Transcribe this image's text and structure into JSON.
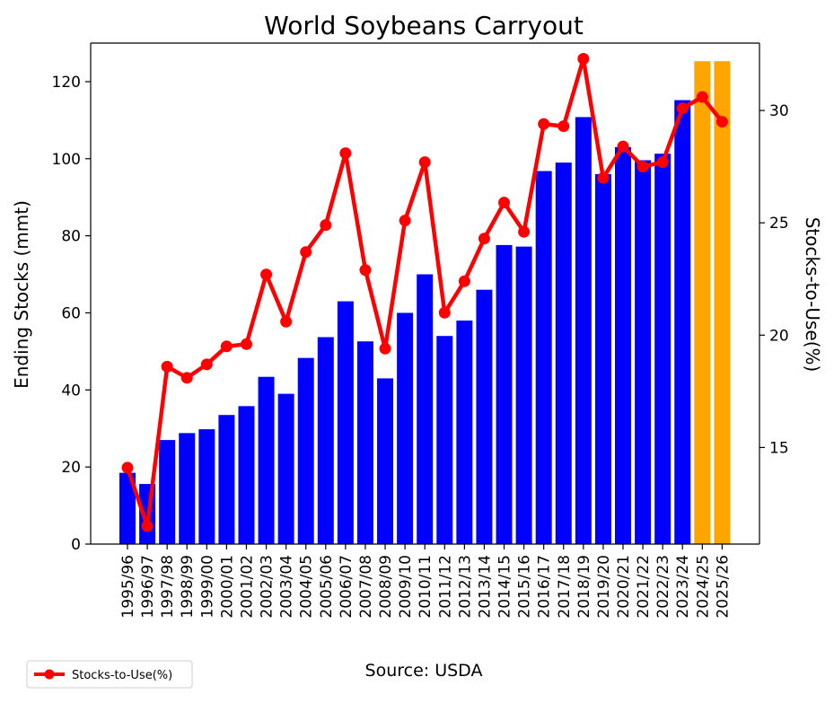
{
  "chart_data": {
    "type": "bar",
    "title": "World Soybeans Carryout",
    "ylabel": "Ending Stocks (mmt)",
    "y2label": "Stocks-to-Use(%)",
    "source": "Source: USDA",
    "ylim": [
      0,
      130
    ],
    "y2lim": [
      10.7,
      33.0
    ],
    "yticks": [
      0,
      20,
      40,
      60,
      80,
      100,
      120
    ],
    "y2ticks": [
      15,
      20,
      25,
      30
    ],
    "categories": [
      "1995/96",
      "1996/97",
      "1997/98",
      "1998/99",
      "1999/00",
      "2000/01",
      "2001/02",
      "2002/03",
      "2003/04",
      "2004/05",
      "2005/06",
      "2006/07",
      "2007/08",
      "2008/09",
      "2009/10",
      "2010/11",
      "2011/12",
      "2012/13",
      "2013/14",
      "2014/15",
      "2015/16",
      "2016/17",
      "2017/18",
      "2018/19",
      "2019/20",
      "2020/21",
      "2021/22",
      "2022/23",
      "2023/24",
      "2024/25",
      "2025/26"
    ],
    "series": [
      {
        "kind": "bar",
        "axis": "left",
        "values": [
          18.5,
          15.6,
          27.0,
          28.8,
          29.8,
          33.5,
          35.8,
          43.4,
          39.0,
          48.3,
          53.7,
          63.0,
          52.6,
          43.0,
          60.0,
          70.0,
          54.0,
          58.0,
          66.0,
          77.6,
          77.2,
          96.8,
          99.0,
          110.8,
          96.0,
          103.0,
          99.6,
          101.3,
          115.2,
          125.3,
          125.3
        ],
        "colors": [
          "#0000ff",
          "#0000ff",
          "#0000ff",
          "#0000ff",
          "#0000ff",
          "#0000ff",
          "#0000ff",
          "#0000ff",
          "#0000ff",
          "#0000ff",
          "#0000ff",
          "#0000ff",
          "#0000ff",
          "#0000ff",
          "#0000ff",
          "#0000ff",
          "#0000ff",
          "#0000ff",
          "#0000ff",
          "#0000ff",
          "#0000ff",
          "#0000ff",
          "#0000ff",
          "#0000ff",
          "#0000ff",
          "#0000ff",
          "#0000ff",
          "#0000ff",
          "#0000ff",
          "#ffa500",
          "#ffa500"
        ]
      },
      {
        "kind": "line",
        "axis": "right",
        "name": "Stocks-to-Use(%)",
        "color": "#ff0000",
        "values": [
          14.1,
          11.5,
          18.6,
          18.1,
          18.7,
          19.5,
          19.6,
          22.7,
          20.6,
          23.7,
          24.9,
          28.1,
          22.9,
          19.4,
          25.1,
          27.7,
          21.0,
          22.4,
          24.3,
          25.9,
          24.6,
          29.4,
          29.3,
          32.3,
          27.0,
          28.4,
          27.5,
          27.7,
          30.1,
          30.6,
          29.5
        ]
      }
    ],
    "legend": {
      "position": "bottom-left",
      "entries": [
        "Stocks-to-Use(%)"
      ]
    }
  }
}
